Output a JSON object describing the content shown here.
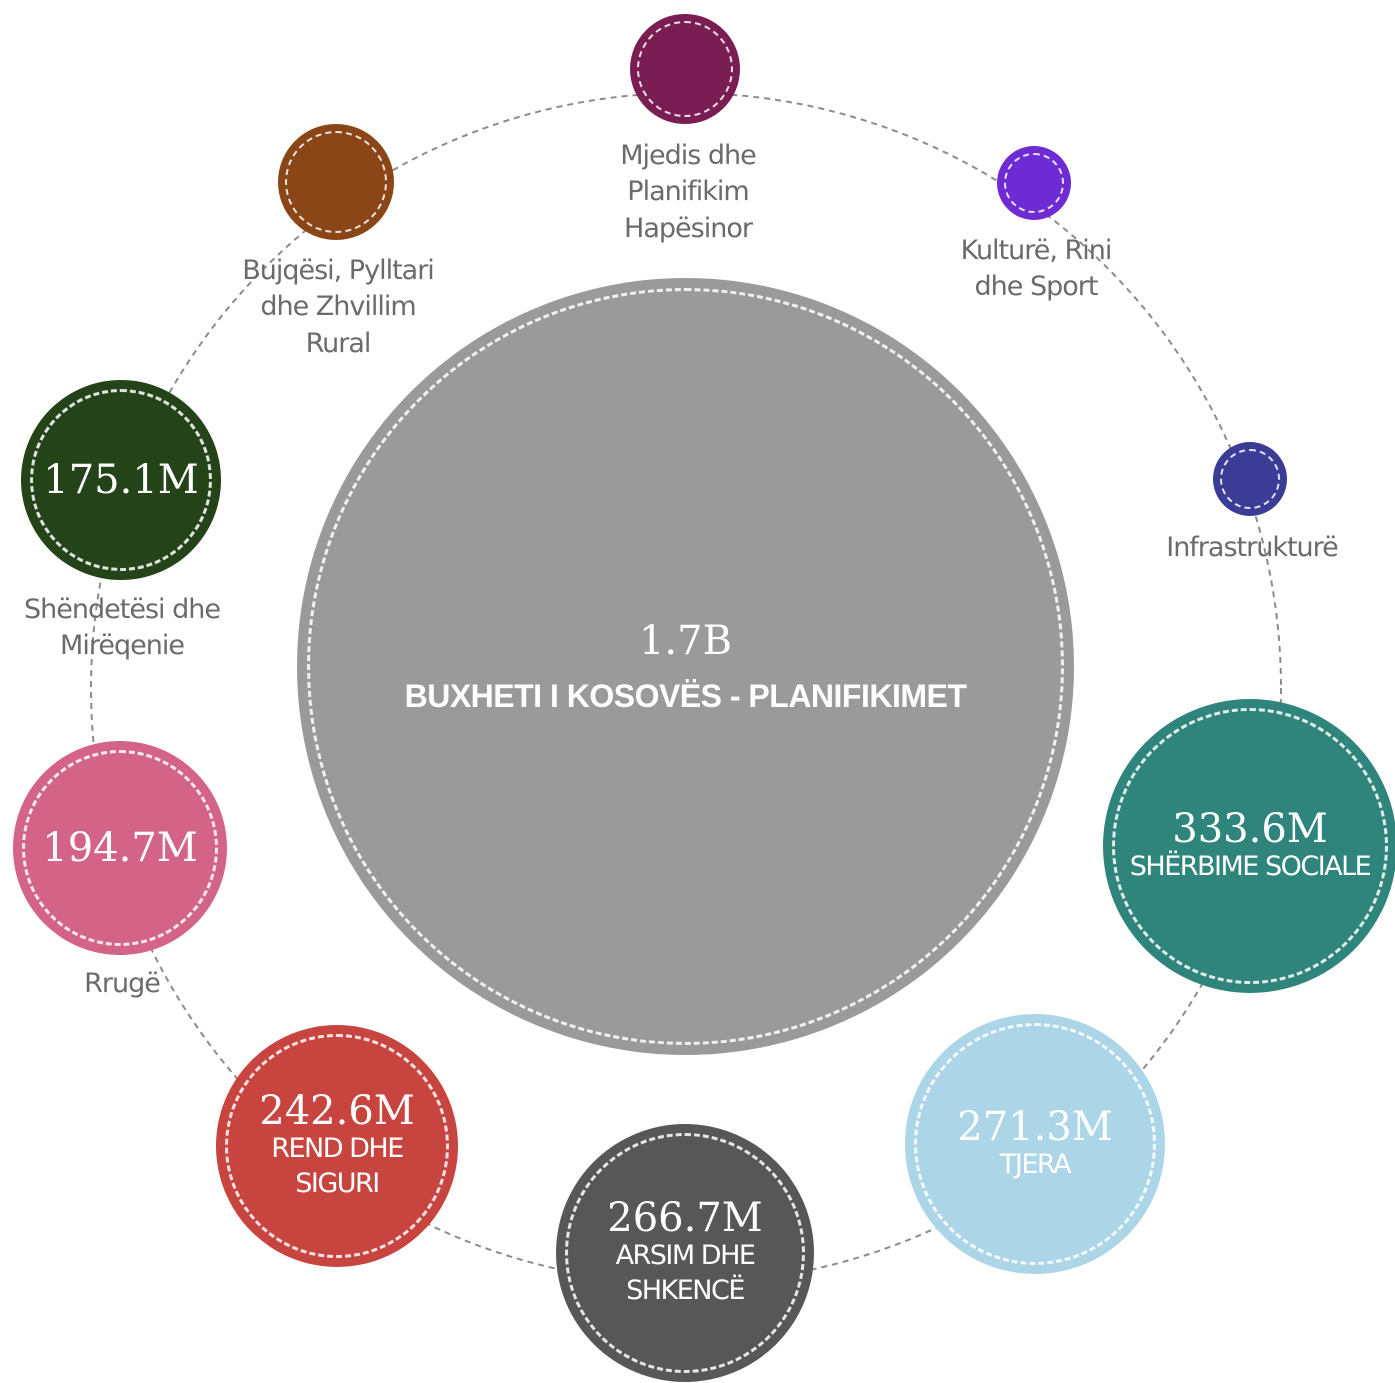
{
  "center": {
    "value": "1.7B",
    "title": "BUXHETI I KOSOVËS - PLANIFIKIMET",
    "color": "#9a9a9a"
  },
  "sectors": [
    {
      "name": "mjedis",
      "label_lines": [
        "Mjedis dhe",
        "Planifikim",
        "Hapësinor"
      ],
      "color": "#7a1d52"
    },
    {
      "name": "kulture",
      "label_lines": [
        "Kulturë, Rini",
        "dhe Sport"
      ],
      "color": "#6f2bd3"
    },
    {
      "name": "infrastrukture",
      "label_lines": [
        "Infrastrukturë"
      ],
      "color": "#3b3c96"
    },
    {
      "name": "sherbime-sociale",
      "value": "333.6M",
      "inner_lines": [
        "SHËRBIME SOCIALE"
      ],
      "color": "#2f857c"
    },
    {
      "name": "tjera",
      "value": "271.3M",
      "inner_lines": [
        "TJERA"
      ],
      "color": "#acd6e8"
    },
    {
      "name": "arsim",
      "value": "266.7M",
      "inner_lines": [
        "ARSIM DHE",
        "SHKENCË"
      ],
      "color": "#575757"
    },
    {
      "name": "rend",
      "value": "242.6M",
      "inner_lines": [
        "REND DHE",
        "SIGURI"
      ],
      "color": "#c8443f"
    },
    {
      "name": "rruge",
      "value": "194.7M",
      "label_lines": [
        "Rrugë"
      ],
      "color": "#d36488"
    },
    {
      "name": "shendetesi",
      "value": "175.1M",
      "label_lines": [
        "Shëndetësi dhe",
        "Mirëqenie"
      ],
      "color": "#254318"
    },
    {
      "name": "bujqesi",
      "label_lines": [
        "Bujqësi, Pylltari",
        "dhe Zhvillim",
        "Rural"
      ],
      "color": "#8a4616"
    }
  ]
}
